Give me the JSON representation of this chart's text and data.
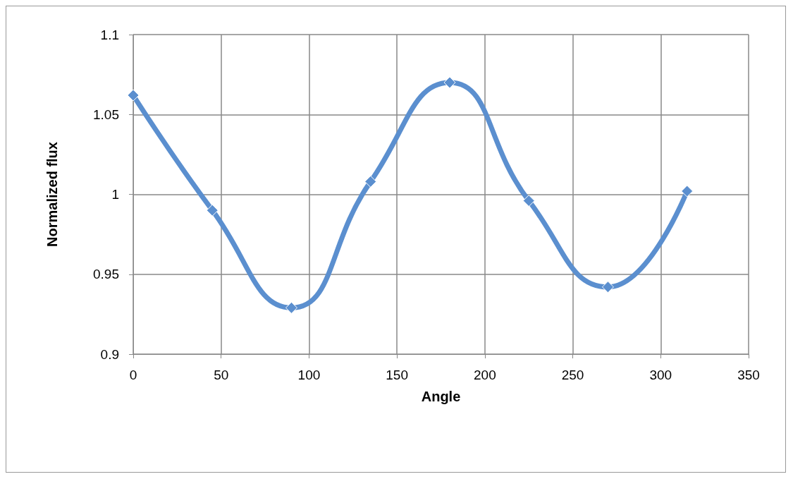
{
  "chart_data": {
    "type": "line",
    "xlabel": "Angle",
    "ylabel": "Normalized flux",
    "x": [
      0,
      45,
      90,
      135,
      180,
      225,
      270,
      315
    ],
    "series": [
      {
        "color": "#5b8fcf",
        "values": [
          1.062,
          0.99,
          0.929,
          1.008,
          1.07,
          0.996,
          0.942,
          1.002
        ]
      }
    ],
    "xlim": [
      0,
      350
    ],
    "xticks": [
      0,
      50,
      100,
      150,
      200,
      250,
      300,
      350
    ],
    "ylim": [
      0.9,
      1.1
    ],
    "yticks": [
      0.9,
      0.95,
      1,
      1.05,
      1.1
    ],
    "grid": true,
    "marker": "diamond",
    "line_style": "solid"
  }
}
